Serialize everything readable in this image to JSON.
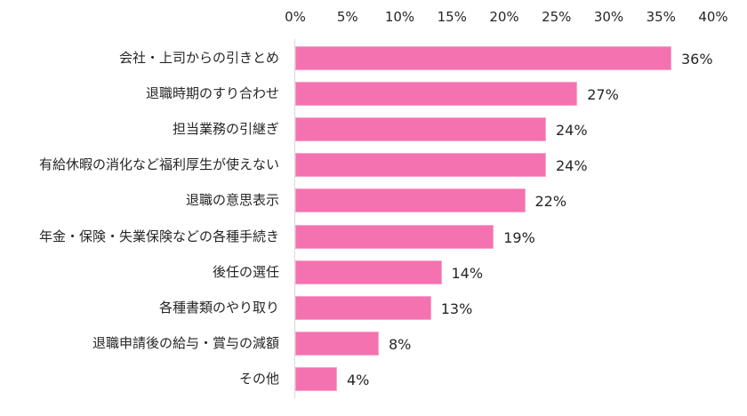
{
  "chart_data": {
    "type": "bar",
    "orientation": "horizontal",
    "title": "",
    "xlabel": "",
    "ylabel": "",
    "xlim": [
      0,
      40
    ],
    "x_ticks": [
      "0%",
      "5%",
      "10%",
      "15%",
      "20%",
      "25%",
      "30%",
      "35%",
      "40%"
    ],
    "x_axis_position": "top",
    "grid": false,
    "legend": null,
    "bar_color": "#f472b0",
    "categories": [
      "会社・上司からの引きとめ",
      "退職時期のすり合わせ",
      "担当業務の引継ぎ",
      "有給休暇の消化など福利厚生が使えない",
      "退職の意思表示",
      "年金・保険・失業保険などの各種手続き",
      "後任の選任",
      "各種書類のやり取り",
      "退職申請後の給与・賞与の減額",
      "その他"
    ],
    "values": [
      36,
      27,
      24,
      24,
      22,
      19,
      14,
      13,
      8,
      4
    ],
    "value_labels": [
      "36%",
      "27%",
      "24%",
      "24%",
      "22%",
      "19%",
      "14%",
      "13%",
      "8%",
      "4%"
    ]
  }
}
